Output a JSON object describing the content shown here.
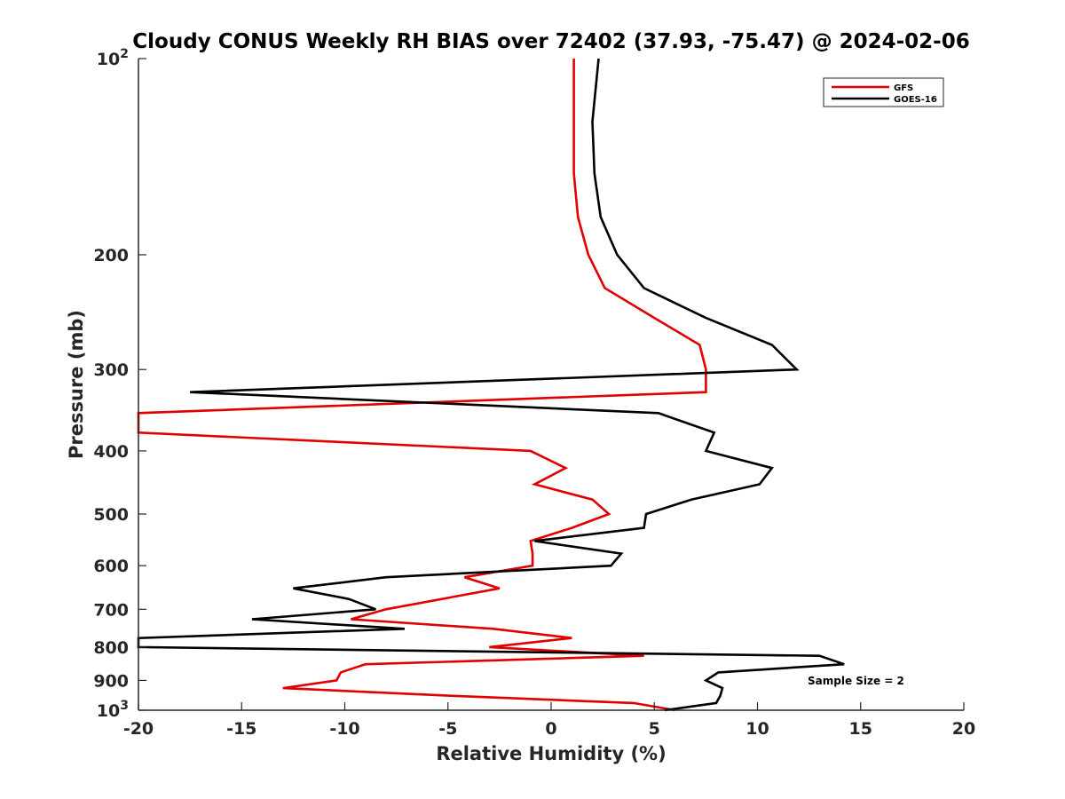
{
  "chart_data": {
    "type": "line",
    "title": "Cloudy CONUS Weekly RH BIAS over 72402 (37.93, -75.47) @ 2024-02-06",
    "xlabel": "Relative Humidity (%)",
    "ylabel": "Pressure (mb)",
    "xlim": [
      -20,
      20
    ],
    "ylim": [
      100,
      1000
    ],
    "y_scale": "log",
    "y_reversed": true,
    "x_ticks": [
      "-20",
      "-15",
      "-10",
      "-5",
      "0",
      "5",
      "10",
      "15",
      "20"
    ],
    "y_ticks": [
      {
        "value": 100,
        "base": "10",
        "exp": "2"
      },
      {
        "value": 200,
        "label": "200"
      },
      {
        "value": 300,
        "label": "300"
      },
      {
        "value": 400,
        "label": "400"
      },
      {
        "value": 500,
        "label": "500"
      },
      {
        "value": 600,
        "label": "600"
      },
      {
        "value": 700,
        "label": "700"
      },
      {
        "value": 800,
        "label": "800"
      },
      {
        "value": 900,
        "label": "900"
      },
      {
        "value": 1000,
        "base": "10",
        "exp": "3"
      }
    ],
    "legend_position": "top-right",
    "grid": false,
    "annotation": "Sample Size = 2",
    "series": [
      {
        "name": "GFS",
        "color": "#e00000",
        "points": [
          [
            1.1,
            100
          ],
          [
            1.1,
            125
          ],
          [
            1.1,
            150
          ],
          [
            1.3,
            175
          ],
          [
            1.8,
            200
          ],
          [
            2.6,
            225
          ],
          [
            5.0,
            250
          ],
          [
            7.2,
            275
          ],
          [
            7.5,
            300
          ],
          [
            7.5,
            325
          ],
          [
            -20.0,
            350
          ],
          [
            -20.0,
            375
          ],
          [
            -1.0,
            400
          ],
          [
            0.7,
            425
          ],
          [
            -0.8,
            450
          ],
          [
            2.0,
            475
          ],
          [
            2.8,
            500
          ],
          [
            1.0,
            525
          ],
          [
            -1.0,
            550
          ],
          [
            -0.9,
            575
          ],
          [
            -0.9,
            600
          ],
          [
            -4.2,
            625
          ],
          [
            -2.5,
            650
          ],
          [
            -8.0,
            700
          ],
          [
            -9.7,
            725
          ],
          [
            -2.8,
            750
          ],
          [
            1.0,
            775
          ],
          [
            -3.0,
            800
          ],
          [
            4.5,
            825
          ],
          [
            -9.0,
            850
          ],
          [
            -10.2,
            875
          ],
          [
            -10.4,
            900
          ],
          [
            -13.0,
            925
          ],
          [
            -5.0,
            950
          ],
          [
            4.0,
            975
          ],
          [
            6.0,
            1000
          ]
        ]
      },
      {
        "name": "GOES-16",
        "color": "#000000",
        "points": [
          [
            2.3,
            100
          ],
          [
            2.0,
            125
          ],
          [
            2.1,
            150
          ],
          [
            2.4,
            175
          ],
          [
            3.2,
            200
          ],
          [
            4.5,
            225
          ],
          [
            7.5,
            250
          ],
          [
            10.7,
            275
          ],
          [
            11.9,
            300
          ],
          [
            -17.5,
            325
          ],
          [
            5.2,
            350
          ],
          [
            7.9,
            375
          ],
          [
            7.5,
            400
          ],
          [
            10.7,
            425
          ],
          [
            10.1,
            450
          ],
          [
            6.8,
            475
          ],
          [
            4.6,
            500
          ],
          [
            4.5,
            525
          ],
          [
            -0.8,
            550
          ],
          [
            3.4,
            575
          ],
          [
            2.9,
            600
          ],
          [
            -8.0,
            625
          ],
          [
            -12.5,
            650
          ],
          [
            -9.8,
            675
          ],
          [
            -8.5,
            700
          ],
          [
            -14.5,
            725
          ],
          [
            -7.1,
            750
          ],
          [
            -20.0,
            775
          ],
          [
            -20.0,
            800
          ],
          [
            13.0,
            825
          ],
          [
            14.2,
            850
          ],
          [
            8.1,
            875
          ],
          [
            7.5,
            900
          ],
          [
            8.3,
            925
          ],
          [
            8.2,
            950
          ],
          [
            8.0,
            975
          ],
          [
            5.5,
            1000
          ]
        ]
      }
    ]
  }
}
